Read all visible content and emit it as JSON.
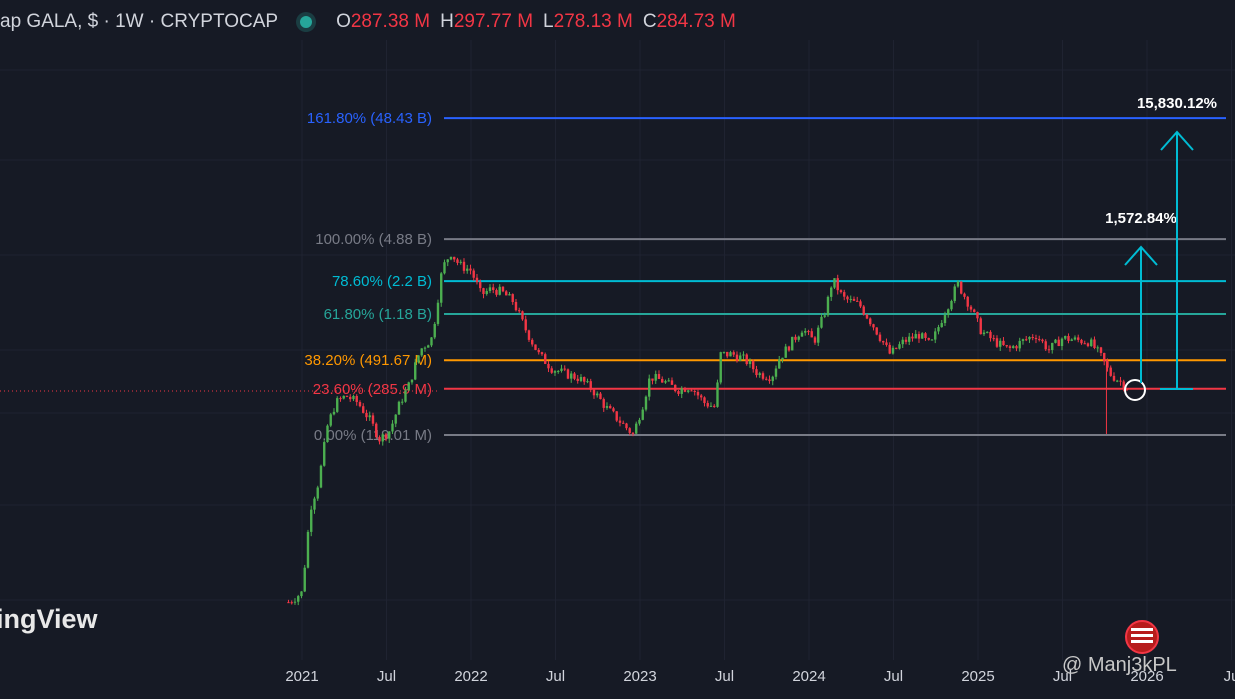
{
  "header": {
    "symbol": "ap GALA, $ · 1W · CRYPTOCAP",
    "open_key": "O",
    "open": "287.38 M",
    "high_key": "H",
    "high": "297.77 M",
    "low_key": "L",
    "low": "278.13 M",
    "close_key": "C",
    "close": "284.73 M",
    "status_color": "#26a69a"
  },
  "watermark": "ingView",
  "credit": "@ Manj3kPL",
  "flag_icon": "us-flag-icon",
  "chart_data": {
    "type": "candlestick",
    "x_ticks": [
      "2021",
      "Jul",
      "2022",
      "Jul",
      "2023",
      "Jul",
      "2024",
      "Jul",
      "2025",
      "Jul",
      "2026",
      "Ju"
    ],
    "fib_levels": [
      {
        "label": "161.80% (48.43 B)",
        "value": 48.43,
        "color": "#2962ff"
      },
      {
        "label": "100.00% (4.88 B)",
        "value": 4.88,
        "color": "#787b86"
      },
      {
        "label": "78.60% (2.2 B)",
        "value": 2.2,
        "color": "#00bcd4"
      },
      {
        "label": "61.80% (1.18 B)",
        "value": 1.18,
        "color": "#26a69a"
      },
      {
        "label": "38.20% (491.67 M)",
        "value": 0.49167,
        "color": "#ff9800"
      },
      {
        "label": "23.60% (285.9 M)",
        "value": 0.2859,
        "color": "#f23645"
      },
      {
        "label": "0.00% (119.01 M)",
        "value": 0.11901,
        "color": "#787b86"
      }
    ],
    "targets": [
      {
        "label": "1,572.84%",
        "color": "#00bcd4"
      },
      {
        "label": "15,830.12%",
        "color": "#00bcd4"
      }
    ],
    "price_path": [
      [
        2020.92,
        0.005
      ],
      [
        2021.0,
        0.006
      ],
      [
        2021.05,
        0.03
      ],
      [
        2021.1,
        0.05
      ],
      [
        2021.15,
        0.14
      ],
      [
        2021.2,
        0.22
      ],
      [
        2021.26,
        0.25
      ],
      [
        2021.33,
        0.22
      ],
      [
        2021.4,
        0.16
      ],
      [
        2021.46,
        0.11
      ],
      [
        2021.52,
        0.13
      ],
      [
        2021.58,
        0.22
      ],
      [
        2021.63,
        0.3
      ],
      [
        2021.7,
        0.6
      ],
      [
        2021.77,
        0.75
      ],
      [
        2021.83,
        2.8
      ],
      [
        2021.88,
        3.8
      ],
      [
        2021.93,
        3.0
      ],
      [
        2022.0,
        2.7
      ],
      [
        2022.06,
        1.7
      ],
      [
        2022.12,
        1.9
      ],
      [
        2022.18,
        1.8
      ],
      [
        2022.25,
        1.5
      ],
      [
        2022.32,
        0.9
      ],
      [
        2022.4,
        0.55
      ],
      [
        2022.48,
        0.42
      ],
      [
        2022.56,
        0.38
      ],
      [
        2022.64,
        0.35
      ],
      [
        2022.72,
        0.28
      ],
      [
        2022.8,
        0.2
      ],
      [
        2022.87,
        0.16
      ],
      [
        2022.96,
        0.12
      ],
      [
        2023.02,
        0.22
      ],
      [
        2023.06,
        0.36
      ],
      [
        2023.14,
        0.33
      ],
      [
        2023.22,
        0.28
      ],
      [
        2023.3,
        0.3
      ],
      [
        2023.38,
        0.22
      ],
      [
        2023.45,
        0.2
      ],
      [
        2023.47,
        0.55
      ],
      [
        2023.55,
        0.55
      ],
      [
        2023.62,
        0.5
      ],
      [
        2023.7,
        0.38
      ],
      [
        2023.78,
        0.36
      ],
      [
        2023.82,
        0.5
      ],
      [
        2023.9,
        0.7
      ],
      [
        2023.96,
        0.9
      ],
      [
        2024.03,
        0.7
      ],
      [
        2024.1,
        1.3
      ],
      [
        2024.14,
        2.3
      ],
      [
        2024.2,
        1.6
      ],
      [
        2024.3,
        1.4
      ],
      [
        2024.38,
        0.95
      ],
      [
        2024.48,
        0.55
      ],
      [
        2024.56,
        0.7
      ],
      [
        2024.65,
        0.8
      ],
      [
        2024.72,
        0.65
      ],
      [
        2024.8,
        1.2
      ],
      [
        2024.88,
        2.1
      ],
      [
        2024.95,
        1.4
      ],
      [
        2025.02,
        0.85
      ],
      [
        2025.1,
        0.7
      ],
      [
        2025.18,
        0.6
      ],
      [
        2025.26,
        0.7
      ],
      [
        2025.34,
        0.8
      ],
      [
        2025.42,
        0.6
      ],
      [
        2025.5,
        0.75
      ],
      [
        2025.58,
        0.72
      ],
      [
        2025.66,
        0.7
      ],
      [
        2025.72,
        0.55
      ],
      [
        2025.78,
        0.38
      ],
      [
        2025.84,
        0.33
      ],
      [
        2025.9,
        0.285
      ]
    ]
  }
}
